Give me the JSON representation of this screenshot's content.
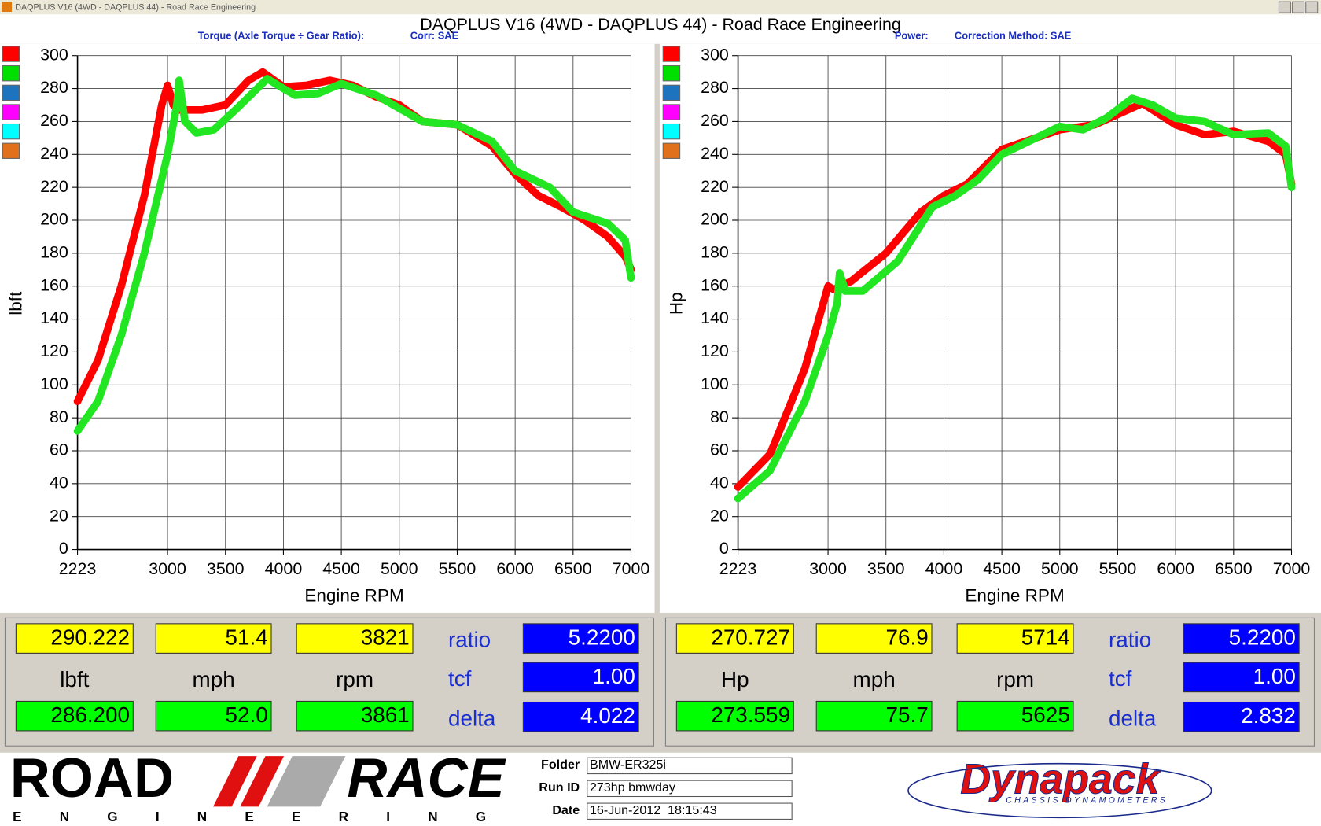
{
  "window": {
    "title": "DAQPLUS V16 (4WD - DAQPLUS 44) - Road Race Engineering"
  },
  "header": {
    "title": "DAQPLUS V16 (4WD - DAQPLUS 44) - Road Race Engineering"
  },
  "chart_data": [
    {
      "type": "line",
      "subtitle_left": "Torque (Axle Torque ÷ Gear Ratio):",
      "subtitle_right": "Corr: SAE",
      "ylabel": "lbft",
      "xlabel": "Engine RPM",
      "xlim": [
        2223,
        7000
      ],
      "ylim": [
        0,
        300
      ],
      "xticks": [
        2223,
        3000,
        3500,
        4000,
        4500,
        5000,
        5500,
        6000,
        6500,
        7000
      ],
      "yticks": [
        0,
        20,
        40,
        60,
        80,
        100,
        120,
        140,
        160,
        180,
        200,
        220,
        240,
        260,
        280,
        300
      ],
      "grid": true,
      "swatches": [
        "#ff0000",
        "#00e000",
        "#1e73be",
        "#ff00ff",
        "#00ffff",
        "#e0701c"
      ],
      "series": [
        {
          "color": "#ff0000",
          "x": [
            2223,
            2400,
            2600,
            2800,
            2950,
            3000,
            3050,
            3100,
            3300,
            3500,
            3700,
            3821,
            4000,
            4200,
            4400,
            4600,
            4800,
            5000,
            5200,
            5500,
            5800,
            6000,
            6200,
            6400,
            6600,
            6800,
            6950,
            7000
          ],
          "values": [
            90,
            115,
            160,
            215,
            270,
            282,
            270,
            267,
            267,
            270,
            285,
            290,
            281,
            282,
            285,
            282,
            275,
            270,
            260,
            258,
            245,
            228,
            215,
            208,
            200,
            190,
            178,
            170
          ]
        },
        {
          "color": "#22e622",
          "x": [
            2223,
            2400,
            2600,
            2800,
            3000,
            3080,
            3100,
            3150,
            3250,
            3400,
            3600,
            3861,
            4000,
            4100,
            4300,
            4500,
            4800,
            5000,
            5200,
            5500,
            5800,
            6000,
            6300,
            6500,
            6800,
            6950,
            7000
          ],
          "values": [
            72,
            90,
            130,
            180,
            240,
            270,
            285,
            260,
            253,
            255,
            268,
            286,
            280,
            276,
            277,
            283,
            276,
            268,
            260,
            258,
            248,
            230,
            220,
            205,
            198,
            188,
            165
          ]
        }
      ]
    },
    {
      "type": "line",
      "subtitle_left": "Power:",
      "subtitle_right": "Correction Method: SAE",
      "ylabel": "Hp",
      "xlabel": "Engine RPM",
      "xlim": [
        2223,
        7000
      ],
      "ylim": [
        0,
        300
      ],
      "xticks": [
        2223,
        3000,
        3500,
        4000,
        4500,
        5000,
        5500,
        6000,
        6500,
        7000
      ],
      "yticks": [
        0,
        20,
        40,
        60,
        80,
        100,
        120,
        140,
        160,
        180,
        200,
        220,
        240,
        260,
        280,
        300
      ],
      "grid": true,
      "swatches": [
        "#ff0000",
        "#00e000",
        "#1e73be",
        "#ff00ff",
        "#00ffff",
        "#e0701c"
      ],
      "series": [
        {
          "color": "#ff0000",
          "x": [
            2223,
            2500,
            2800,
            3000,
            3050,
            3200,
            3500,
            3800,
            4000,
            4200,
            4500,
            5000,
            5300,
            5714,
            6000,
            6250,
            6500,
            6800,
            6950,
            7000
          ],
          "values": [
            38,
            58,
            110,
            160,
            158,
            163,
            180,
            205,
            215,
            222,
            243,
            255,
            258,
            271,
            258,
            252,
            254,
            248,
            240,
            222
          ]
        },
        {
          "color": "#22e622",
          "x": [
            2223,
            2500,
            2800,
            3000,
            3080,
            3100,
            3150,
            3300,
            3600,
            3900,
            4100,
            4300,
            4500,
            5000,
            5200,
            5400,
            5625,
            5800,
            6000,
            6250,
            6500,
            6800,
            6950,
            7000
          ],
          "values": [
            31,
            48,
            90,
            130,
            150,
            168,
            157,
            157,
            175,
            208,
            215,
            225,
            240,
            257,
            255,
            262,
            274,
            270,
            262,
            260,
            252,
            253,
            245,
            220
          ]
        }
      ]
    }
  ],
  "readouts": [
    {
      "top": [
        "290.222",
        "51.4",
        "3821"
      ],
      "units": [
        "lbft",
        "mph",
        "rpm"
      ],
      "bottom": [
        "286.200",
        "52.0",
        "3861"
      ],
      "labels": [
        "ratio",
        "tcf",
        "delta"
      ],
      "settings": [
        "5.2200",
        "1.00",
        "4.022"
      ]
    },
    {
      "top": [
        "270.727",
        "76.9",
        "5714"
      ],
      "units": [
        "Hp",
        "mph",
        "rpm"
      ],
      "bottom": [
        "273.559",
        "75.7",
        "5625"
      ],
      "labels": [
        "ratio",
        "tcf",
        "delta"
      ],
      "settings": [
        "5.2200",
        "1.00",
        "2.832"
      ]
    }
  ],
  "footer": {
    "logo": {
      "word1": "ROAD",
      "word2": "RACE",
      "tagline": "ENGINEERING"
    },
    "fields": [
      {
        "label": "Folder",
        "value": "BMW-ER325i"
      },
      {
        "label": "Run ID",
        "value": "273hp bmwday"
      },
      {
        "label": "Date",
        "value": "16-Jun-2012  18:15:43"
      }
    ],
    "brand": {
      "name": "Dynapack",
      "tagline": "CHASSIS DYNAMOMETERS"
    }
  }
}
